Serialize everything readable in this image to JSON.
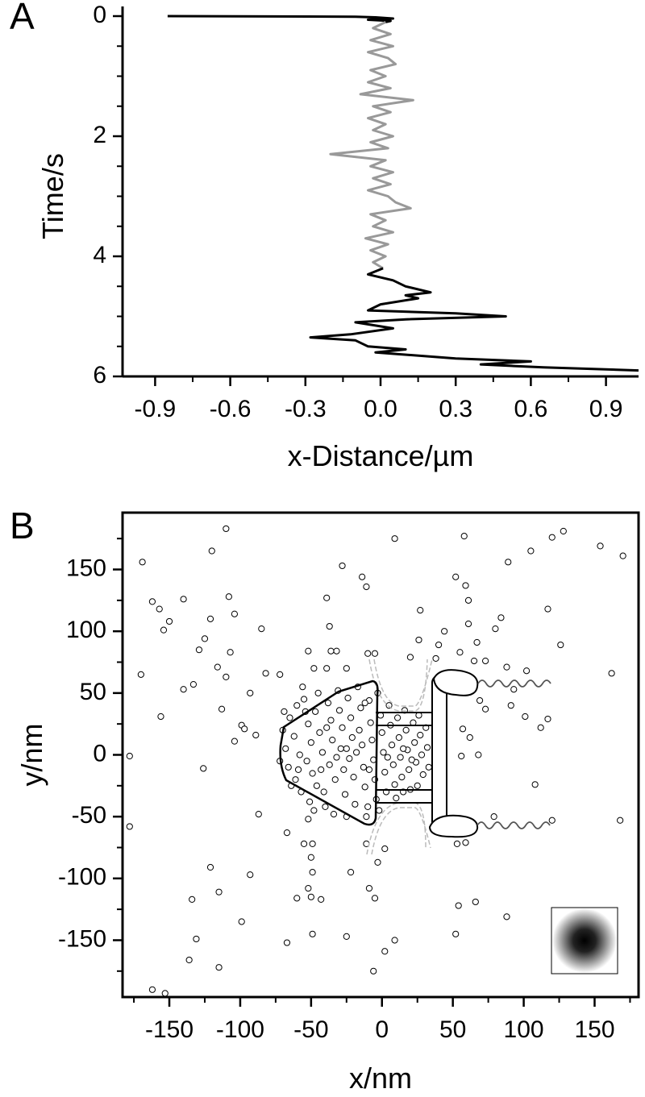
{
  "chart_data": [
    {
      "type": "line",
      "panel_label": "A",
      "x_label": "x-Distance/µm",
      "y_label": "Time/s",
      "xlim": [
        -1.03,
        1.03
      ],
      "ylim": [
        0,
        6
      ],
      "y_inverted": true,
      "xticks": [
        -0.9,
        -0.6,
        -0.3,
        {
          "value": 0,
          "label": "0.0"
        },
        0.3,
        0.6,
        0.9
      ],
      "xminorticks": [
        -0.75,
        -0.45,
        -0.15,
        0.15,
        0.45,
        0.75
      ],
      "yticks": [
        0,
        2,
        4,
        6
      ],
      "yminorticks": [
        0.5,
        1,
        1.5,
        2.5,
        3,
        3.5,
        4.5,
        5,
        5.5
      ],
      "series": [
        {
          "color": "#000000",
          "y": [
            0,
            0.01,
            0.02,
            0.04,
            0.06,
            0.08,
            0.1
          ],
          "values": [
            -0.85,
            -0.1,
            -0.02,
            0.05,
            -0.05,
            0.04,
            0.02
          ]
        },
        {
          "color": "#999999",
          "y": [
            0.1,
            0.2,
            0.3,
            0.4,
            0.5,
            0.6,
            0.7,
            0.8,
            0.9,
            1.0,
            1.1,
            1.2,
            1.3,
            1.4,
            1.5,
            1.6,
            1.7,
            1.8,
            1.9,
            2.0,
            2.1,
            2.2,
            2.3,
            2.4,
            2.5,
            2.6,
            2.7,
            2.8,
            2.9,
            3.0,
            3.1,
            3.2,
            3.3,
            3.4,
            3.5,
            3.6,
            3.7,
            3.8,
            3.9,
            4.0,
            4.1,
            4.2
          ],
          "values": [
            0.02,
            -0.03,
            0.04,
            -0.04,
            0.05,
            -0.05,
            0.03,
            0.06,
            -0.04,
            0.02,
            -0.05,
            0.04,
            -0.08,
            0.13,
            -0.03,
            0.04,
            -0.05,
            0.02,
            -0.03,
            0.05,
            -0.04,
            0.03,
            -0.2,
            0.02,
            -0.04,
            0.05,
            -0.03,
            0.04,
            -0.05,
            0.03,
            0.06,
            0.12,
            -0.04,
            0.02,
            -0.03,
            0.05,
            -0.06,
            0.03,
            -0.04,
            0.02,
            -0.03,
            0.01
          ]
        },
        {
          "color": "#000000",
          "y": [
            4.2,
            4.3,
            4.4,
            4.5,
            4.6,
            4.65,
            4.7,
            4.8,
            4.9,
            4.95,
            5.0,
            5.05,
            5.1,
            5.2,
            5.3,
            5.35,
            5.4,
            5.5,
            5.55,
            5.6,
            5.7,
            5.75,
            5.8,
            5.85,
            5.9
          ],
          "values": [
            0.01,
            -0.05,
            0.05,
            0.1,
            0.2,
            0.1,
            0.15,
            0.0,
            -0.05,
            0.3,
            0.5,
            0.1,
            -0.1,
            0.05,
            -0.12,
            -0.28,
            -0.1,
            -0.05,
            0.1,
            -0.02,
            0.3,
            0.6,
            0.4,
            0.65,
            1.03
          ]
        }
      ]
    },
    {
      "type": "scatter",
      "panel_label": "B",
      "x_label": "x/nm",
      "y_label": "y/nm",
      "xlim": [
        -183,
        181
      ],
      "ylim": [
        -196,
        196
      ],
      "xticks": [
        -150,
        -100,
        -50,
        0,
        50,
        100,
        150
      ],
      "xminorticks": [
        -175,
        -125,
        -75,
        -25,
        25,
        75,
        125,
        175
      ],
      "yticks": [
        -150,
        -100,
        -50,
        0,
        50,
        100,
        150
      ],
      "yminorticks": [
        -175,
        -125,
        -75,
        -25,
        25,
        75,
        125,
        175
      ],
      "color": "#ffffff",
      "x": [
        -110,
        -169,
        -120,
        -162,
        -157,
        -140,
        -108,
        -104,
        -150,
        -154,
        -121,
        -125,
        -170,
        -129,
        -107,
        -116,
        -110,
        -140,
        -133,
        -156,
        -113,
        -178,
        -126,
        -104,
        -178,
        -162,
        -153,
        -134,
        -131,
        -136,
        -121,
        -115,
        -115,
        -99,
        -93,
        -67,
        -49,
        -25,
        -6,
        2,
        9,
        52,
        54,
        66,
        88,
        -87,
        -67,
        -55,
        -49,
        -52,
        -50,
        -49,
        -52,
        -50,
        -43,
        -60,
        -22,
        -9,
        -5,
        -3,
        2,
        -11,
        47,
        53,
        59,
        79,
        108,
        120,
        168,
        9,
        58,
        120,
        128,
        105,
        89,
        59,
        27,
        52,
        61,
        61,
        80,
        84,
        117,
        126,
        102,
        88,
        93,
        91,
        101,
        112,
        117,
        154,
        170,
        162,
        -28,
        -14,
        -11,
        -39,
        -37,
        -52,
        -36,
        -32,
        -48,
        -39,
        -25,
        -10,
        -5,
        26,
        20,
        38,
        40,
        44,
        67,
        65,
        73,
        55,
        -72,
        -85,
        -82,
        -93,
        -99,
        -97,
        -89,
        60,
        69,
        73,
        57,
        62,
        56,
        68,
        -70,
        -68,
        -66,
        -72,
        -65,
        -60,
        -62,
        -58,
        -61,
        -57,
        -55,
        -52,
        -50,
        -53,
        -49,
        -51,
        -47,
        -45,
        -44,
        -42,
        -46,
        -40,
        -38,
        -36,
        -35,
        -37,
        -33,
        -34,
        -31,
        -30,
        -28,
        -29,
        -27,
        -26,
        -24,
        -22,
        -21,
        -23,
        -20,
        -19,
        -17,
        -15,
        -16,
        -14,
        -13,
        -12,
        -11,
        -9,
        -8,
        -7,
        -6,
        -5,
        -4,
        -3,
        -1,
        0,
        1,
        2,
        3,
        5,
        6,
        7,
        8,
        9,
        11,
        12,
        13,
        14,
        16,
        17,
        18,
        19,
        20,
        22,
        23,
        24,
        26,
        27,
        28,
        29,
        31,
        32,
        33,
        -64,
        -56,
        -48,
        -41,
        -25,
        -10,
        -2,
        10,
        15,
        25,
        -69,
        -59,
        -43,
        -32,
        -18,
        -9,
        4,
        21,
        -54,
        -39,
        -12,
        15,
        -25
      ],
      "values": [
        183,
        156,
        165,
        124,
        118,
        126,
        128,
        114,
        108,
        101,
        110,
        94,
        65,
        85,
        83,
        71,
        63,
        53,
        57,
        31,
        37,
        -1,
        -11,
        11,
        -58,
        -190,
        -193,
        -117,
        -149,
        -166,
        -91,
        -111,
        -172,
        -135,
        -97,
        -152,
        -145,
        -147,
        -175,
        -159,
        -150,
        -145,
        -122,
        -119,
        -131,
        -48,
        -63,
        -72,
        -72,
        -52,
        -83,
        -95,
        -108,
        -115,
        -117,
        -116,
        -95,
        -108,
        -116,
        -87,
        -76,
        -72,
        -63,
        -72,
        -71,
        -50,
        -24,
        -53,
        -53,
        175,
        177,
        176,
        181,
        165,
        156,
        137,
        117,
        144,
        125,
        106,
        102,
        111,
        118,
        89,
        68,
        71,
        53,
        40,
        31,
        22,
        29,
        169,
        161,
        66,
        153,
        144,
        136,
        127,
        104,
        84,
        84,
        84,
        70,
        70,
        70,
        82,
        82,
        93,
        79,
        78,
        89,
        100,
        91,
        76,
        76,
        83,
        65,
        102,
        66,
        50,
        24,
        21,
        16,
        63,
        44,
        37,
        21,
        14,
        -1,
        0,
        20,
        5,
        -10,
        -5,
        30,
        40,
        15,
        0,
        -20,
        -30,
        45,
        25,
        10,
        -5,
        -15,
        -38,
        35,
        50,
        18,
        2,
        -25,
        -42,
        42,
        28,
        12,
        -8,
        -20,
        -48,
        52,
        36,
        22,
        5,
        -12,
        -32,
        46,
        30,
        14,
        -3,
        -18,
        -40,
        55,
        38,
        20,
        8,
        -10,
        -26,
        -50,
        44,
        26,
        12,
        -4,
        -20,
        -36,
        50,
        32,
        18,
        2,
        -14,
        -30,
        40,
        24,
        8,
        -8,
        -24,
        30,
        14,
        -2,
        -18,
        36,
        20,
        4,
        -12,
        -28,
        26,
        10,
        -6,
        32,
        16,
        0,
        -16,
        22,
        6,
        -10,
        -25,
        55,
        -45,
        -30,
        -50,
        -42,
        -45,
        -35,
        -30,
        -25,
        35,
        -12,
        -12,
        -2,
        2,
        -12,
        -2,
        -4,
        35,
        22,
        42,
        5,
        5
      ]
    }
  ]
}
